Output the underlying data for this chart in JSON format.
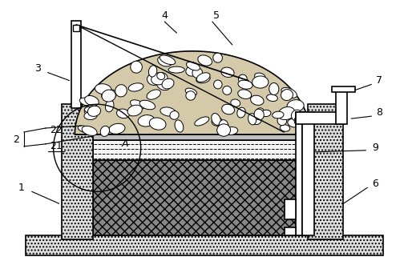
{
  "bg_color": "#ffffff",
  "line_color": "#000000",
  "concrete_color": "#e0e0e0",
  "sludge_color": "#c0c0c0",
  "mound_color": "#d4c9a8",
  "water_color": "#f5f5f5",
  "fig_w": 5.09,
  "fig_h": 3.26,
  "dpi": 100
}
